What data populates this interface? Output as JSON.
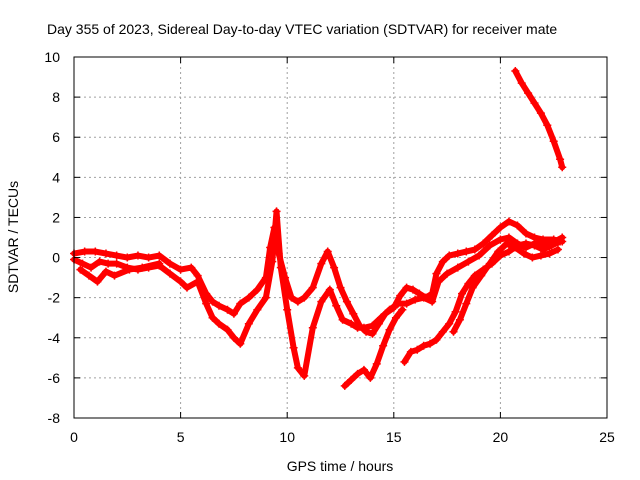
{
  "chart_data": {
    "type": "scatter",
    "title": "Day 355 of 2023, Sidereal Day-to-day VTEC variation (SDTVAR) for receiver mate",
    "xlabel": "GPS time / hours",
    "ylabel": "SDTVAR / TECUs",
    "xlim": [
      0,
      25
    ],
    "ylim": [
      -8,
      10
    ],
    "xticks": [
      0,
      5,
      10,
      15,
      20,
      25
    ],
    "yticks": [
      -8,
      -6,
      -4,
      -2,
      0,
      2,
      4,
      6,
      8,
      10
    ],
    "xtick_labels": [
      "0",
      "5",
      "10",
      "15",
      "20",
      "25"
    ],
    "ytick_labels": [
      "-8",
      "-6",
      "-4",
      "-2",
      "0",
      "2",
      "4",
      "6",
      "8",
      "10"
    ],
    "grid": true,
    "marker": "+",
    "color": "#ff0000",
    "series": [
      {
        "name": "trace-1",
        "points": [
          [
            0.0,
            0.2
          ],
          [
            0.5,
            0.3
          ],
          [
            1.0,
            0.3
          ],
          [
            1.5,
            0.2
          ],
          [
            2.0,
            0.1
          ],
          [
            2.5,
            0.0
          ],
          [
            3.0,
            0.1
          ],
          [
            3.5,
            0.0
          ],
          [
            4.0,
            0.1
          ],
          [
            4.5,
            -0.3
          ],
          [
            5.0,
            -0.6
          ],
          [
            5.5,
            -0.5
          ],
          [
            5.8,
            -0.9
          ],
          [
            6.2,
            -1.8
          ],
          [
            6.5,
            -2.2
          ],
          [
            6.8,
            -2.4
          ],
          [
            7.2,
            -2.6
          ],
          [
            7.5,
            -2.8
          ],
          [
            7.8,
            -2.3
          ],
          [
            8.2,
            -2.0
          ],
          [
            8.6,
            -1.6
          ],
          [
            9.0,
            -1.0
          ],
          [
            9.2,
            0.5
          ],
          [
            9.4,
            1.5
          ],
          [
            9.6,
            0.2
          ],
          [
            9.9,
            -1.0
          ],
          [
            10.2,
            -2.0
          ],
          [
            10.5,
            -2.2
          ],
          [
            10.8,
            -2.0
          ],
          [
            11.2,
            -1.5
          ],
          [
            11.6,
            -0.3
          ],
          [
            11.9,
            0.3
          ],
          [
            12.2,
            -0.5
          ],
          [
            12.5,
            -1.5
          ],
          [
            12.8,
            -2.2
          ],
          [
            13.1,
            -2.8
          ],
          [
            13.4,
            -3.4
          ],
          [
            13.7,
            -3.7
          ],
          [
            14.0,
            -3.8
          ],
          [
            14.3,
            -3.3
          ],
          [
            14.6,
            -2.8
          ],
          [
            15.0,
            -2.5
          ],
          [
            15.3,
            -1.9
          ],
          [
            15.6,
            -1.5
          ],
          [
            15.9,
            -1.6
          ],
          [
            16.2,
            -1.8
          ],
          [
            16.5,
            -2.0
          ],
          [
            16.8,
            -1.8
          ],
          [
            17.0,
            -0.8
          ],
          [
            17.3,
            -0.2
          ],
          [
            17.6,
            0.1
          ],
          [
            18.0,
            0.2
          ],
          [
            18.4,
            0.3
          ],
          [
            18.8,
            0.4
          ],
          [
            19.2,
            0.7
          ],
          [
            19.6,
            1.1
          ],
          [
            20.0,
            1.5
          ],
          [
            20.4,
            1.8
          ],
          [
            20.8,
            1.6
          ],
          [
            21.2,
            1.2
          ],
          [
            21.6,
            1.0
          ],
          [
            22.0,
            0.9
          ],
          [
            22.5,
            0.9
          ],
          [
            22.9,
            0.8
          ]
        ]
      },
      {
        "name": "trace-2",
        "points": [
          [
            0.0,
            -0.1
          ],
          [
            0.4,
            -0.3
          ],
          [
            0.8,
            -0.5
          ],
          [
            1.2,
            -0.2
          ],
          [
            1.6,
            -0.3
          ],
          [
            2.0,
            -0.3
          ],
          [
            2.5,
            -0.5
          ],
          [
            3.0,
            -0.6
          ],
          [
            3.5,
            -0.5
          ],
          [
            4.0,
            -0.4
          ],
          [
            4.5,
            -0.8
          ],
          [
            5.0,
            -1.2
          ],
          [
            5.3,
            -1.5
          ],
          [
            5.8,
            -1.2
          ],
          [
            6.2,
            -2.3
          ],
          [
            6.5,
            -3.0
          ],
          [
            6.8,
            -3.3
          ],
          [
            7.2,
            -3.6
          ],
          [
            7.5,
            -4.0
          ],
          [
            7.8,
            -4.3
          ],
          [
            8.2,
            -3.3
          ],
          [
            8.6,
            -2.6
          ],
          [
            9.0,
            -2.0
          ],
          [
            9.3,
            -0.2
          ],
          [
            9.5,
            2.3
          ],
          [
            9.7,
            -0.5
          ],
          [
            10.0,
            -2.6
          ],
          [
            10.3,
            -4.5
          ],
          [
            10.5,
            -5.5
          ],
          [
            10.8,
            -5.9
          ],
          [
            11.2,
            -3.5
          ],
          [
            11.6,
            -2.2
          ],
          [
            12.0,
            -1.6
          ],
          [
            12.3,
            -2.4
          ],
          [
            12.6,
            -3.1
          ],
          [
            13.0,
            -3.3
          ],
          [
            13.3,
            -3.5
          ],
          [
            13.6,
            -3.5
          ],
          [
            14.0,
            -3.4
          ],
          [
            14.4,
            -3.0
          ],
          [
            14.8,
            -2.6
          ],
          [
            15.2,
            -2.3
          ],
          [
            15.6,
            -2.3
          ],
          [
            16.0,
            -2.1
          ],
          [
            16.4,
            -2.0
          ],
          [
            16.8,
            -2.2
          ],
          [
            17.1,
            -1.2
          ],
          [
            17.5,
            -0.8
          ],
          [
            18.0,
            -0.5
          ],
          [
            18.5,
            -0.2
          ],
          [
            19.0,
            0.1
          ],
          [
            19.5,
            0.6
          ],
          [
            20.0,
            0.9
          ],
          [
            20.4,
            1.0
          ],
          [
            20.8,
            0.7
          ],
          [
            21.2,
            0.5
          ],
          [
            21.6,
            0.7
          ],
          [
            22.2,
            0.6
          ],
          [
            22.9,
            1.0
          ]
        ]
      },
      {
        "name": "trace-3",
        "points": [
          [
            0.3,
            -0.6
          ],
          [
            0.7,
            -0.9
          ],
          [
            1.1,
            -1.2
          ],
          [
            1.5,
            -0.7
          ],
          [
            1.9,
            -0.9
          ],
          [
            2.6,
            -0.6
          ],
          [
            3.2,
            -0.5
          ],
          [
            4.0,
            -0.3
          ]
        ]
      },
      {
        "name": "trace-4",
        "points": [
          [
            12.7,
            -6.4
          ],
          [
            13.0,
            -6.1
          ],
          [
            13.3,
            -5.8
          ],
          [
            13.6,
            -5.6
          ],
          [
            13.9,
            -6.0
          ],
          [
            14.2,
            -5.3
          ],
          [
            14.5,
            -4.4
          ],
          [
            14.8,
            -3.6
          ],
          [
            15.1,
            -3.0
          ],
          [
            15.4,
            -2.6
          ]
        ]
      },
      {
        "name": "trace-5",
        "points": [
          [
            15.5,
            -5.2
          ],
          [
            15.8,
            -4.7
          ],
          [
            16.1,
            -4.6
          ],
          [
            16.4,
            -4.4
          ],
          [
            16.7,
            -4.3
          ],
          [
            17.0,
            -4.1
          ],
          [
            17.3,
            -3.7
          ],
          [
            17.6,
            -3.3
          ],
          [
            17.9,
            -2.7
          ],
          [
            18.2,
            -1.8
          ],
          [
            18.5,
            -1.3
          ],
          [
            18.8,
            -0.9
          ],
          [
            19.2,
            -0.6
          ],
          [
            19.6,
            -0.3
          ],
          [
            20.0,
            0.1
          ],
          [
            20.4,
            0.3
          ],
          [
            20.8,
            0.6
          ],
          [
            21.2,
            0.7
          ],
          [
            21.6,
            0.6
          ],
          [
            22.0,
            0.4
          ],
          [
            22.4,
            0.6
          ],
          [
            22.8,
            0.8
          ]
        ]
      },
      {
        "name": "trace-6",
        "points": [
          [
            17.8,
            -3.7
          ],
          [
            18.1,
            -3.1
          ],
          [
            18.4,
            -2.3
          ],
          [
            18.7,
            -1.5
          ],
          [
            19.1,
            -0.9
          ],
          [
            19.5,
            -0.3
          ],
          [
            19.9,
            0.3
          ],
          [
            20.3,
            0.7
          ],
          [
            20.7,
            0.5
          ],
          [
            21.1,
            0.2
          ],
          [
            21.5,
            0.0
          ],
          [
            21.9,
            0.1
          ],
          [
            22.3,
            0.2
          ],
          [
            22.7,
            0.4
          ]
        ]
      },
      {
        "name": "trace-7",
        "points": [
          [
            20.7,
            9.3
          ],
          [
            21.0,
            8.7
          ],
          [
            21.3,
            8.2
          ],
          [
            21.6,
            7.7
          ],
          [
            21.9,
            7.2
          ],
          [
            22.2,
            6.6
          ],
          [
            22.5,
            5.8
          ],
          [
            22.8,
            4.9
          ],
          [
            22.9,
            4.5
          ]
        ]
      }
    ]
  }
}
